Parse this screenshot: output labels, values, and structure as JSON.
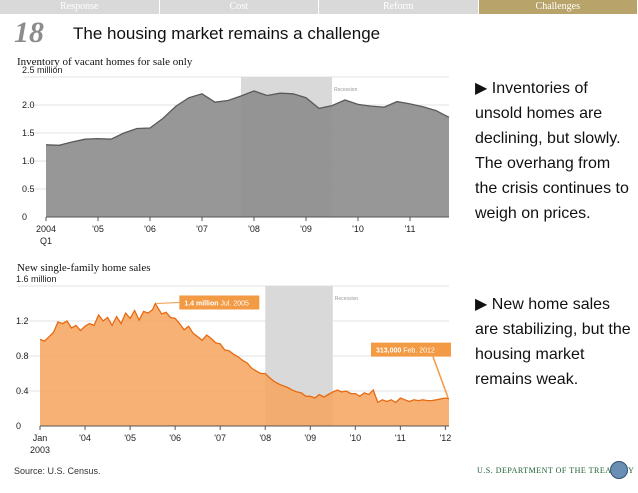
{
  "nav": {
    "tabs": [
      {
        "label": "Response",
        "active": false
      },
      {
        "label": "Cost",
        "active": false
      },
      {
        "label": "Reform",
        "active": false
      },
      {
        "label": "Challenges",
        "active": true
      }
    ]
  },
  "slide": {
    "number": "18",
    "title": "The housing market remains a challenge"
  },
  "chart_data": [
    {
      "type": "area",
      "title": "Inventory of vacant homes for sale only",
      "xlabel": "",
      "ylabel": "",
      "x": [
        2004.0,
        2004.25,
        2004.5,
        2004.75,
        2005.0,
        2005.25,
        2005.5,
        2005.75,
        2006.0,
        2006.25,
        2006.5,
        2006.75,
        2007.0,
        2007.25,
        2007.5,
        2007.75,
        2008.0,
        2008.25,
        2008.5,
        2008.75,
        2009.0,
        2009.25,
        2009.5,
        2009.75,
        2010.0,
        2010.25,
        2010.5,
        2010.75,
        2011.0,
        2011.25,
        2011.5,
        2011.75
      ],
      "y": [
        1.29,
        1.28,
        1.34,
        1.39,
        1.4,
        1.39,
        1.5,
        1.58,
        1.59,
        1.76,
        1.98,
        2.13,
        2.2,
        2.05,
        2.08,
        2.16,
        2.25,
        2.17,
        2.21,
        2.2,
        2.13,
        1.94,
        1.99,
        2.09,
        2.01,
        1.98,
        1.96,
        2.06,
        2.02,
        1.97,
        1.9,
        1.78
      ],
      "xticks": [
        "2004",
        "'05",
        "'06",
        "'07",
        "'08",
        "'09",
        "'10",
        "'11"
      ],
      "xtick_values": [
        2004,
        2005,
        2006,
        2007,
        2008,
        2009,
        2010,
        2011
      ],
      "xtick_sublabel": "Q1",
      "yticks": [
        "0",
        "0.5",
        "1.0",
        "1.5",
        "2.0",
        "2.5 million"
      ],
      "ytick_values": [
        0,
        0.5,
        1.0,
        1.5,
        2.0,
        2.5
      ],
      "xlim": [
        2004.0,
        2011.75
      ],
      "ylim": [
        0,
        2.5
      ],
      "recession": {
        "start": 2007.75,
        "end": 2009.5,
        "label": "Recession"
      },
      "colors": {
        "fill": "#8c8c8c",
        "stroke": "#5a5a5a",
        "recession": "#d9d9d9"
      }
    },
    {
      "type": "area",
      "title": "New single-family home sales",
      "xlabel": "",
      "ylabel": "",
      "x": [
        2003.0,
        2003.1,
        2003.2,
        2003.3,
        2003.4,
        2003.5,
        2003.6,
        2003.7,
        2003.8,
        2003.9,
        2004.0,
        2004.1,
        2004.2,
        2004.3,
        2004.4,
        2004.5,
        2004.6,
        2004.7,
        2004.8,
        2004.9,
        2005.0,
        2005.1,
        2005.2,
        2005.3,
        2005.4,
        2005.5,
        2005.56,
        2005.7,
        2005.8,
        2005.9,
        2006.0,
        2006.1,
        2006.2,
        2006.3,
        2006.4,
        2006.5,
        2006.6,
        2006.7,
        2006.8,
        2006.9,
        2007.0,
        2007.1,
        2007.2,
        2007.3,
        2007.4,
        2007.5,
        2007.6,
        2007.7,
        2007.8,
        2007.9,
        2008.0,
        2008.1,
        2008.2,
        2008.3,
        2008.4,
        2008.5,
        2008.6,
        2008.7,
        2008.8,
        2008.9,
        2009.0,
        2009.1,
        2009.2,
        2009.3,
        2009.4,
        2009.5,
        2009.6,
        2009.7,
        2009.8,
        2009.9,
        2010.0,
        2010.1,
        2010.2,
        2010.3,
        2010.4,
        2010.5,
        2010.6,
        2010.7,
        2010.8,
        2010.9,
        2011.0,
        2011.1,
        2011.2,
        2011.3,
        2011.4,
        2011.5,
        2011.6,
        2011.7,
        2011.8,
        2011.9,
        2012.0,
        2012.08
      ],
      "y": [
        0.99,
        0.97,
        1.02,
        1.07,
        1.19,
        1.17,
        1.2,
        1.12,
        1.15,
        1.09,
        1.14,
        1.17,
        1.15,
        1.27,
        1.2,
        1.24,
        1.15,
        1.25,
        1.17,
        1.29,
        1.23,
        1.32,
        1.21,
        1.31,
        1.29,
        1.33,
        1.4,
        1.28,
        1.3,
        1.24,
        1.23,
        1.17,
        1.1,
        1.14,
        1.06,
        1.02,
        0.98,
        1.04,
        1.0,
        0.95,
        0.94,
        0.87,
        0.86,
        0.82,
        0.79,
        0.75,
        0.72,
        0.66,
        0.63,
        0.6,
        0.6,
        0.55,
        0.51,
        0.48,
        0.46,
        0.44,
        0.41,
        0.39,
        0.38,
        0.34,
        0.34,
        0.32,
        0.36,
        0.33,
        0.36,
        0.39,
        0.41,
        0.39,
        0.4,
        0.37,
        0.37,
        0.34,
        0.38,
        0.36,
        0.41,
        0.27,
        0.3,
        0.28,
        0.3,
        0.27,
        0.32,
        0.3,
        0.28,
        0.3,
        0.29,
        0.3,
        0.29,
        0.29,
        0.3,
        0.31,
        0.32,
        0.313
      ],
      "xticks": [
        "Jan",
        "'04",
        "'05",
        "'06",
        "'07",
        "'08",
        "'09",
        "'10",
        "'11",
        "'12"
      ],
      "xtick_values": [
        2003,
        2004,
        2005,
        2006,
        2007,
        2008,
        2009,
        2010,
        2011,
        2012
      ],
      "xtick_sublabel": "2003",
      "yticks": [
        "0",
        "0.4",
        "0.8",
        "1.2",
        "1.6 million"
      ],
      "ytick_values": [
        0,
        0.4,
        0.8,
        1.2,
        1.6
      ],
      "xlim": [
        2003.0,
        2012.08
      ],
      "ylim": [
        0,
        1.6
      ],
      "recession": {
        "start": 2008.0,
        "end": 2009.5,
        "label": "Recession"
      },
      "annotations": [
        {
          "value": "1.4 million",
          "date": "Jul. 2005",
          "x": 2005.56,
          "y": 1.4
        },
        {
          "value": "313,000",
          "date": "Feb. 2012",
          "x": 2012.08,
          "y": 0.313
        }
      ],
      "colors": {
        "fill": "#f7a35c",
        "stroke": "#e86a10",
        "recession": "#d9d9d9",
        "label_bg": "#f39a45"
      }
    }
  ],
  "bullets": [
    {
      "glyph": "▶",
      "text": "Inventories of unsold homes are declining, but slowly. The overhang from the crisis continues to weigh on prices."
    },
    {
      "glyph": "▶",
      "text": "New home sales are stabilizing, but the housing market remains weak."
    }
  ],
  "source": "Source: U.S. Census.",
  "footer": "U.S. DEPARTMENT OF THE TREASURY"
}
